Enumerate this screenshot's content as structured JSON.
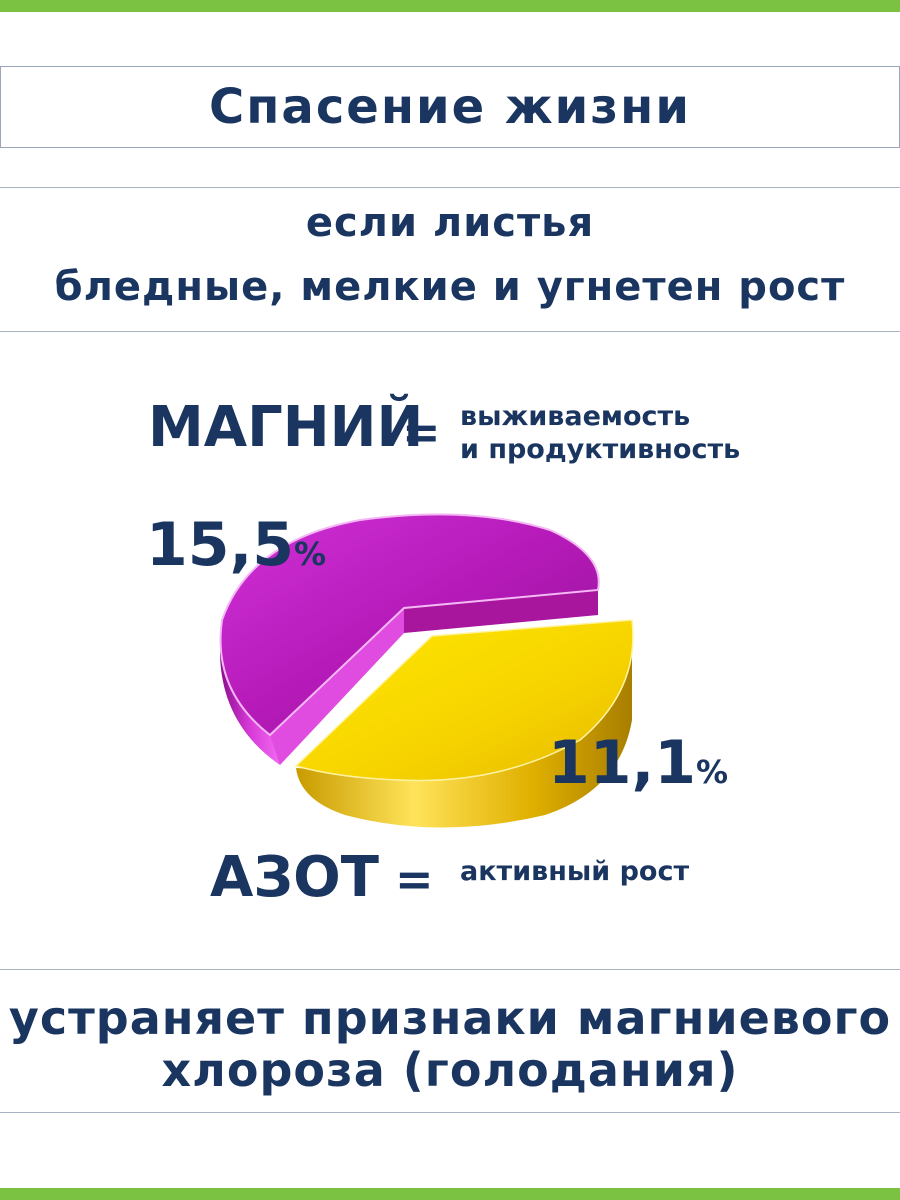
{
  "header": {
    "title": "Спасение жизни"
  },
  "condition": {
    "line1": "если листья",
    "line2": "бледные, мелкие и угнетен рост"
  },
  "magnesium": {
    "label": "МАГНИЙ",
    "equals": "=",
    "desc_line1": "выживаемость",
    "desc_line2": "и продуктивность"
  },
  "nitrogen": {
    "label": "АЗОТ",
    "equals": "=",
    "desc": "активный рост"
  },
  "chart_data": {
    "type": "pie",
    "series": [
      {
        "name": "МАГНИЙ",
        "value": 15.5,
        "label_value": "15,5",
        "label_unit": "%",
        "color": "#c21fc4"
      },
      {
        "name": "АЗОТ",
        "value": 11.1,
        "label_value": "11,1",
        "label_unit": "%",
        "color": "#f2cc00"
      }
    ]
  },
  "footer": {
    "line1": "устраняет признаки магниевого",
    "line2": "хлороза (голодания)"
  },
  "colors": {
    "accent_bar": "#7cc242",
    "text": "#1a3560",
    "magnesium": "#c21fc4",
    "nitrogen": "#f2cc00"
  }
}
